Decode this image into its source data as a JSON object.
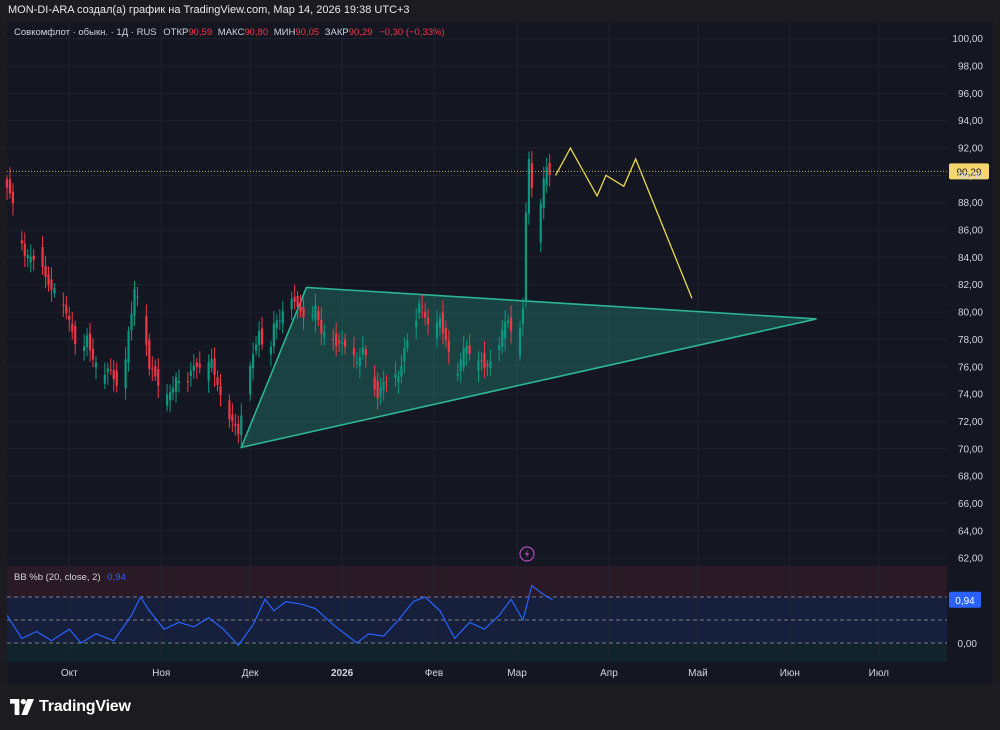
{
  "header": {
    "title": "MON-DI-ARA создал(а) график на TradingView.com, Мар 14, 2026 19:38 UTC+3"
  },
  "legend": {
    "symbol": "Совкомфлот · обыкн. · 1Д · RUS",
    "open_label": "ОТКР",
    "open_value": "90,59",
    "high_label": "МАКС",
    "high_value": "90,80",
    "low_label": "МИН",
    "low_value": "90,05",
    "close_label": "ЗАКР",
    "close_value": "90,29",
    "change": "−0,30 (−0,33%)"
  },
  "indicator": {
    "name": "BB %b (20, close, 2)",
    "value": "0,94",
    "axis_labels": [
      "0,94",
      "0,00"
    ]
  },
  "price_badge": "90,29",
  "footer": {
    "logo_text": "TradingView"
  },
  "colors": {
    "up": "#089981",
    "down": "#f23645",
    "triangle": "#2bb596",
    "forecast": "#e8d94a",
    "indicator_line": "#2962ff",
    "price_line": "#c8b43c"
  },
  "chart_data": {
    "type": "candlestick",
    "title": "",
    "y_ticks": [
      "100,00",
      "98,00",
      "96,00",
      "94,00",
      "92,00",
      "90,00",
      "88,00",
      "86,00",
      "84,00",
      "82,00",
      "80,00",
      "78,00",
      "76,00",
      "74,00",
      "72,00",
      "70,00",
      "68,00",
      "66,00",
      "64,00",
      "62,00"
    ],
    "ylim": [
      61.5,
      101
    ],
    "x_ticks": [
      "Окт",
      "Ноя",
      "Дек",
      "2026",
      "Фев",
      "Мар",
      "Апр",
      "Май",
      "Июн",
      "Июл"
    ],
    "x_tick_dates": [
      "2025-10-01",
      "2025-11-01",
      "2025-12-01",
      "2026-01-01",
      "2026-02-01",
      "2026-03-01",
      "2026-04-01",
      "2026-05-01",
      "2026-06-01",
      "2026-07-01"
    ],
    "xlim": [
      "2025-09-10",
      "2026-07-24"
    ],
    "last_price": 90.29,
    "price_path": [
      [
        "2025-09-10",
        89.5
      ],
      [
        "2025-09-12",
        89.0
      ],
      [
        "2025-09-15",
        85.5
      ],
      [
        "2025-09-17",
        84.2
      ],
      [
        "2025-09-19",
        83.8
      ],
      [
        "2025-09-22",
        84.5
      ],
      [
        "2025-09-24",
        82.5
      ],
      [
        "2025-09-26",
        81.8
      ],
      [
        "2025-09-29",
        80.8
      ],
      [
        "2025-10-01",
        80.0
      ],
      [
        "2025-10-03",
        78.5
      ],
      [
        "2025-10-06",
        77.0
      ],
      [
        "2025-10-08",
        78.2
      ],
      [
        "2025-10-10",
        76.5
      ],
      [
        "2025-10-13",
        74.8
      ],
      [
        "2025-10-15",
        76.0
      ],
      [
        "2025-10-17",
        75.2
      ],
      [
        "2025-10-20",
        74.5
      ],
      [
        "2025-10-22",
        78.5
      ],
      [
        "2025-10-24",
        81.5
      ],
      [
        "2025-10-27",
        79.5
      ],
      [
        "2025-10-29",
        76.0
      ],
      [
        "2025-10-31",
        75.5
      ],
      [
        "2025-11-03",
        73.5
      ],
      [
        "2025-11-05",
        74.0
      ],
      [
        "2025-11-07",
        75.0
      ],
      [
        "2025-11-10",
        74.5
      ],
      [
        "2025-11-12",
        75.8
      ],
      [
        "2025-11-14",
        76.2
      ],
      [
        "2025-11-17",
        75.5
      ],
      [
        "2025-11-19",
        76.5
      ],
      [
        "2025-11-21",
        74.5
      ],
      [
        "2025-11-24",
        73.0
      ],
      [
        "2025-11-26",
        72.0
      ],
      [
        "2025-11-28",
        71.2
      ],
      [
        "2025-12-01",
        74.5
      ],
      [
        "2025-12-03",
        77.0
      ],
      [
        "2025-12-05",
        78.5
      ],
      [
        "2025-12-08",
        76.5
      ],
      [
        "2025-12-10",
        79.0
      ],
      [
        "2025-12-12",
        79.5
      ],
      [
        "2025-12-15",
        80.5
      ],
      [
        "2025-12-17",
        81.0
      ],
      [
        "2025-12-19",
        80.0
      ],
      [
        "2025-12-22",
        79.5
      ],
      [
        "2025-12-24",
        80.2
      ],
      [
        "2025-12-26",
        78.5
      ],
      [
        "2025-12-29",
        78.0
      ],
      [
        "2026-01-05",
        77.5
      ],
      [
        "2026-01-07",
        76.0
      ],
      [
        "2026-01-09",
        77.5
      ],
      [
        "2026-01-12",
        75.0
      ],
      [
        "2026-01-14",
        74.0
      ],
      [
        "2026-01-16",
        74.8
      ],
      [
        "2026-01-19",
        75.5
      ],
      [
        "2026-01-21",
        75.0
      ],
      [
        "2026-01-23",
        77.5
      ],
      [
        "2026-01-26",
        78.5
      ],
      [
        "2026-01-28",
        80.8
      ],
      [
        "2026-01-30",
        79.5
      ],
      [
        "2026-02-02",
        78.5
      ],
      [
        "2026-02-04",
        79.5
      ],
      [
        "2026-02-06",
        78.0
      ],
      [
        "2026-02-09",
        75.0
      ],
      [
        "2026-02-11",
        76.5
      ],
      [
        "2026-02-13",
        77.5
      ],
      [
        "2026-02-16",
        76.0
      ],
      [
        "2026-02-18",
        76.5
      ],
      [
        "2026-02-20",
        76.0
      ],
      [
        "2026-02-23",
        77.0
      ],
      [
        "2026-02-25",
        78.5
      ],
      [
        "2026-02-27",
        79.5
      ],
      [
        "2026-03-02",
        77.0
      ],
      [
        "2026-03-04",
        80.5
      ],
      [
        "2026-03-05",
        87.5
      ],
      [
        "2026-03-06",
        91.0
      ],
      [
        "2026-03-09",
        85.0
      ],
      [
        "2026-03-10",
        88.0
      ],
      [
        "2026-03-11",
        89.5
      ],
      [
        "2026-03-12",
        90.5
      ],
      [
        "2026-03-13",
        90.29
      ]
    ],
    "triangle": [
      [
        "2025-11-28",
        70.1
      ],
      [
        "2025-12-20",
        81.8
      ],
      [
        "2026-06-10",
        79.5
      ]
    ],
    "forecast_path": [
      [
        "2026-03-14",
        90.0
      ],
      [
        "2026-03-19",
        92.0
      ],
      [
        "2026-03-28",
        88.5
      ],
      [
        "2026-03-31",
        90.0
      ],
      [
        "2026-04-06",
        89.2
      ],
      [
        "2026-04-10",
        91.2
      ],
      [
        "2026-04-29",
        81.0
      ]
    ],
    "indicator": {
      "name": "BB %b",
      "levels": [
        1.0,
        0.5,
        0.0
      ],
      "last": 0.94,
      "values": [
        [
          "2025-09-10",
          0.6
        ],
        [
          "2025-09-15",
          0.1
        ],
        [
          "2025-09-20",
          0.25
        ],
        [
          "2025-09-25",
          0.05
        ],
        [
          "2025-10-01",
          0.3
        ],
        [
          "2025-10-05",
          0.0
        ],
        [
          "2025-10-10",
          0.2
        ],
        [
          "2025-10-16",
          0.05
        ],
        [
          "2025-10-22",
          0.6
        ],
        [
          "2025-10-25",
          1.0
        ],
        [
          "2025-10-28",
          0.7
        ],
        [
          "2025-11-02",
          0.3
        ],
        [
          "2025-11-07",
          0.45
        ],
        [
          "2025-11-12",
          0.35
        ],
        [
          "2025-11-17",
          0.55
        ],
        [
          "2025-11-22",
          0.3
        ],
        [
          "2025-11-27",
          -0.05
        ],
        [
          "2025-12-02",
          0.4
        ],
        [
          "2025-12-06",
          0.95
        ],
        [
          "2025-12-09",
          0.7
        ],
        [
          "2025-12-13",
          0.9
        ],
        [
          "2025-12-18",
          0.85
        ],
        [
          "2025-12-23",
          0.75
        ],
        [
          "2025-12-29",
          0.4
        ],
        [
          "2026-01-06",
          0.0
        ],
        [
          "2026-01-10",
          0.2
        ],
        [
          "2026-01-15",
          0.15
        ],
        [
          "2026-01-20",
          0.5
        ],
        [
          "2026-01-25",
          0.9
        ],
        [
          "2026-01-29",
          1.0
        ],
        [
          "2026-02-03",
          0.7
        ],
        [
          "2026-02-08",
          0.1
        ],
        [
          "2026-02-13",
          0.45
        ],
        [
          "2026-02-18",
          0.3
        ],
        [
          "2026-02-23",
          0.6
        ],
        [
          "2026-02-27",
          0.95
        ],
        [
          "2026-03-03",
          0.5
        ],
        [
          "2026-03-06",
          1.25
        ],
        [
          "2026-03-10",
          1.05
        ],
        [
          "2026-03-13",
          0.94
        ]
      ]
    }
  }
}
